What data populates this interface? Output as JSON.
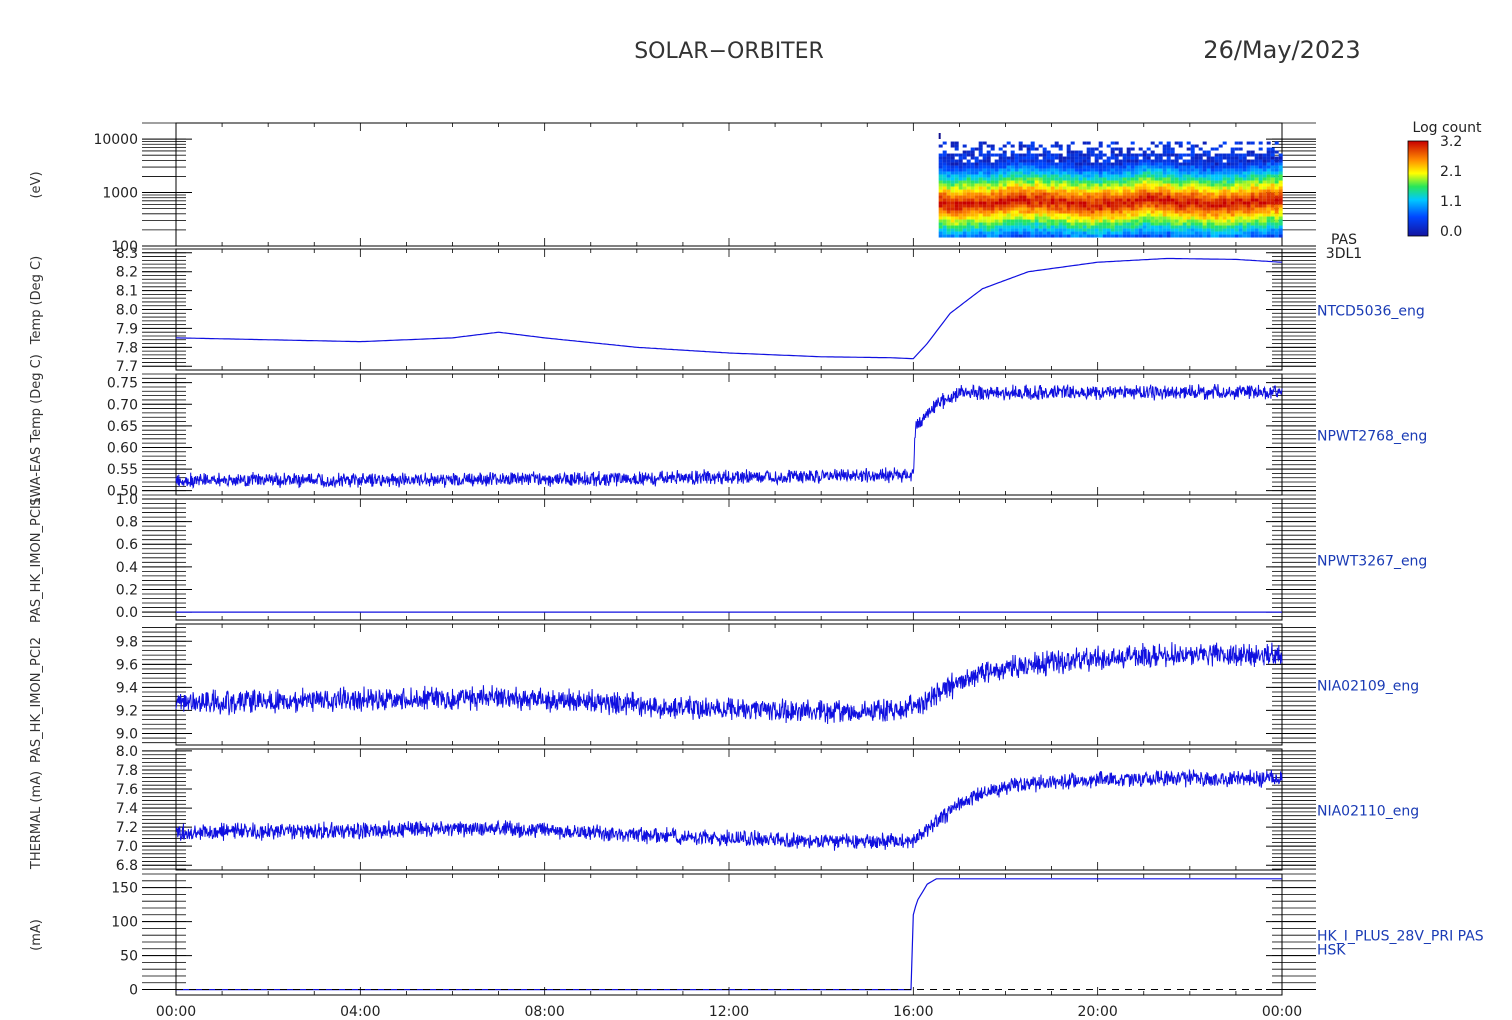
{
  "header": {
    "mission": "SOLAR−ORBITER",
    "date": "26/May/2023"
  },
  "colors": {
    "trace": "#1010e0",
    "label": "#1a3bb5",
    "axis": "#000000"
  },
  "chart_data": [
    {
      "type": "heatmap",
      "title": "",
      "xlabel": "",
      "ylabel": "(eV)",
      "y_scale": "log",
      "ylim": [
        100,
        20000
      ],
      "yticks": [
        {
          "v": 100,
          "label": "100"
        },
        {
          "v": 1000,
          "label": "1000"
        },
        {
          "v": 10000,
          "label": "10000"
        }
      ],
      "data_start_hour": 16.55,
      "band_center_eV": 700,
      "colorbar": {
        "label": "Log count",
        "ticks": [
          "3.2",
          "2.1",
          "1.1",
          "0.0"
        ],
        "range": [
          0.0,
          3.2
        ]
      },
      "side_label": [
        "PAS",
        "3DL1"
      ]
    },
    {
      "type": "line",
      "ylabel": "Temp (Deg C)",
      "ylim": [
        7.68,
        8.32
      ],
      "yticks": [
        7.7,
        7.8,
        7.9,
        8.0,
        8.1,
        8.2,
        8.3
      ],
      "tick_format": "1",
      "side_label": [
        "NTCD5036_eng"
      ],
      "series": [
        {
          "x": [
            0,
            2,
            4,
            6,
            7,
            8,
            10,
            12,
            14,
            15.5,
            16,
            16.3,
            16.8,
            17.5,
            18.5,
            20,
            21.5,
            23,
            24
          ],
          "values": [
            7.85,
            7.84,
            7.83,
            7.85,
            7.88,
            7.85,
            7.8,
            7.77,
            7.75,
            7.745,
            7.74,
            7.82,
            7.98,
            8.11,
            8.2,
            8.25,
            8.27,
            8.265,
            8.25
          ]
        }
      ]
    },
    {
      "type": "line",
      "ylabel": "",
      "ylim": [
        0.49,
        0.77
      ],
      "yticks": [
        0.5,
        0.55,
        0.6,
        0.65,
        0.7,
        0.75
      ],
      "tick_format": "2",
      "side_label": [
        "NPWT2768_eng"
      ],
      "noise": 0.02,
      "series": [
        {
          "x": [
            0,
            4,
            8,
            12,
            15.9,
            16.0,
            16.05,
            16.5,
            17,
            20,
            24
          ],
          "values": [
            0.525,
            0.525,
            0.527,
            0.53,
            0.537,
            0.537,
            0.65,
            0.7,
            0.725,
            0.728,
            0.728
          ]
        }
      ]
    },
    {
      "type": "line",
      "ylabel": "",
      "ylim": [
        -0.07,
        1.0
      ],
      "yticks": [
        0.0,
        0.2,
        0.4,
        0.6,
        0.8,
        1.0
      ],
      "tick_format": "1",
      "side_label": [
        "NPWT3267_eng"
      ],
      "series": [
        {
          "x": [
            0,
            24
          ],
          "values": [
            0.0,
            0.0
          ]
        }
      ]
    },
    {
      "type": "line",
      "ylabel": "",
      "ylim": [
        8.9,
        9.95
      ],
      "yticks": [
        9.0,
        9.2,
        9.4,
        9.6,
        9.8
      ],
      "tick_format": "1",
      "side_label": [
        "NIA02109_eng"
      ],
      "noise": 0.12,
      "series": [
        {
          "x": [
            0,
            7,
            8,
            12,
            15,
            16,
            17,
            18,
            19.5,
            21,
            24
          ],
          "values": [
            9.27,
            9.31,
            9.29,
            9.21,
            9.19,
            9.22,
            9.45,
            9.57,
            9.64,
            9.68,
            9.68
          ]
        }
      ]
    },
    {
      "type": "line",
      "ylabel": "",
      "ylim": [
        6.75,
        8.02
      ],
      "yticks": [
        6.8,
        7.0,
        7.2,
        7.4,
        7.6,
        7.8,
        8.0
      ],
      "tick_format": "1",
      "side_label": [
        "NIA02110_eng"
      ],
      "noise": 0.1,
      "series": [
        {
          "x": [
            0,
            7,
            8,
            12,
            15,
            16,
            17,
            18,
            19.5,
            21,
            24
          ],
          "values": [
            7.14,
            7.19,
            7.16,
            7.08,
            7.04,
            7.06,
            7.45,
            7.63,
            7.69,
            7.71,
            7.71
          ]
        }
      ]
    },
    {
      "type": "line",
      "ylabel": "(mA)",
      "ylim": [
        -8,
        170
      ],
      "yticks": [
        0,
        50,
        100,
        150
      ],
      "tick_format": "0",
      "side_label": [
        "HK_I_PLUS_28V_PRI PAS",
        "HSK"
      ],
      "reference_line": 0,
      "series": [
        {
          "x": [
            0,
            15.99,
            16.0,
            16.08,
            16.3,
            16.5,
            24
          ],
          "values": [
            0,
            0,
            110,
            130,
            155,
            163,
            163
          ]
        }
      ]
    }
  ],
  "x_axis": {
    "ticks": [
      "00:00",
      "04:00",
      "08:00",
      "12:00",
      "16:00",
      "20:00",
      "00:00"
    ],
    "range_hours": [
      0,
      24
    ]
  },
  "y_axis_labels": [
    "(eV)",
    "Temp (Deg C)",
    "SWA-EAS Temp (Deg C)",
    "PAS_HK_IMON_PCI1",
    "PAS_HK_IMON_PCI2",
    "THERMAL (mA)",
    "(mA)"
  ]
}
